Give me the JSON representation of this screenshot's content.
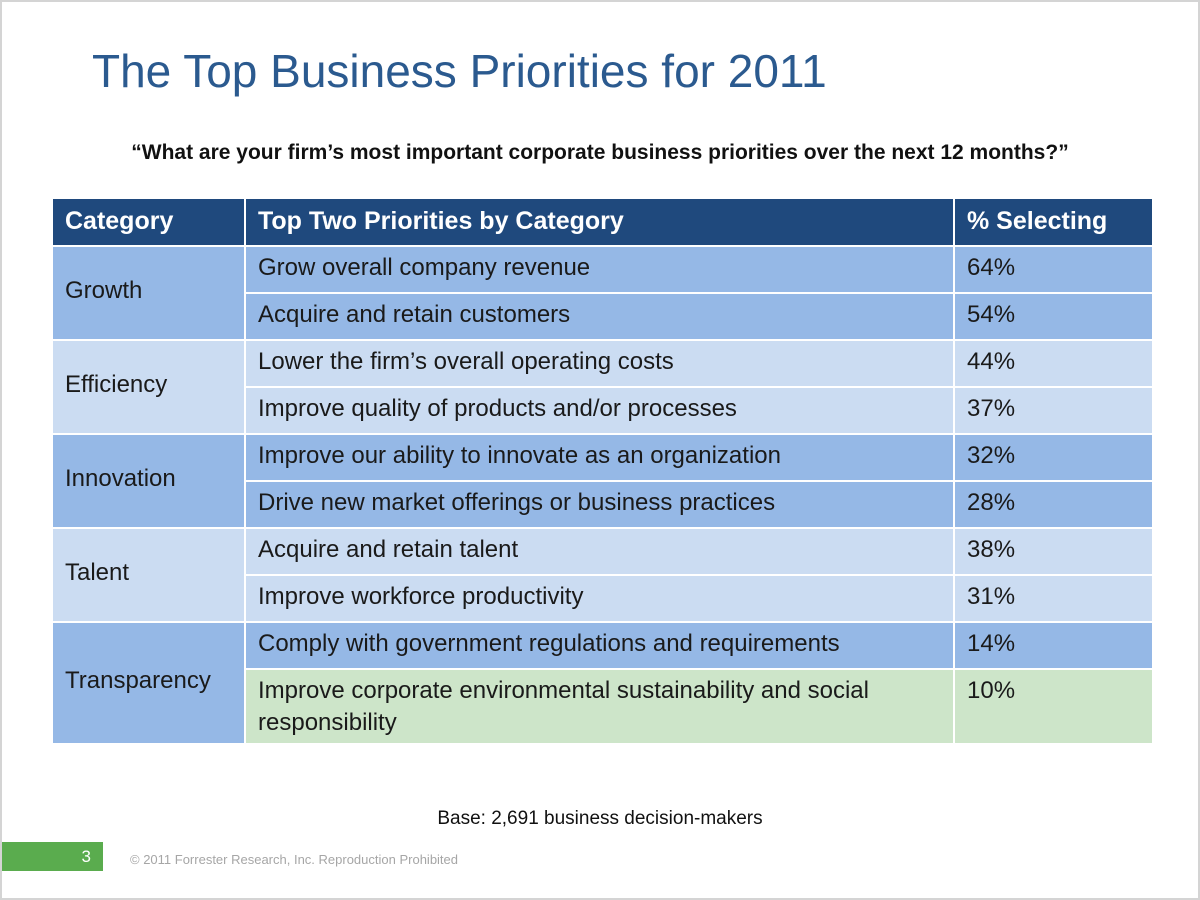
{
  "title": "The Top Business Priorities for 2011",
  "question": "“What are your firm’s most important corporate business priorities over the next 12 months?”",
  "table": {
    "headers": [
      "Category",
      "Top Two Priorities by Category",
      "% Selecting"
    ],
    "groups": [
      {
        "category": "Growth",
        "rows": [
          {
            "priority": "Grow overall company revenue",
            "percent": "64%"
          },
          {
            "priority": "Acquire and retain customers",
            "percent": "54%"
          }
        ]
      },
      {
        "category": "Efficiency",
        "rows": [
          {
            "priority": "Lower the firm’s overall operating costs",
            "percent": "44%"
          },
          {
            "priority": "Improve quality of products and/or processes",
            "percent": "37%"
          }
        ]
      },
      {
        "category": "Innovation",
        "rows": [
          {
            "priority": "Improve our ability to innovate as an organization",
            "percent": "32%"
          },
          {
            "priority": "Drive new market offerings or business practices",
            "percent": "28%"
          }
        ]
      },
      {
        "category": "Talent",
        "rows": [
          {
            "priority": "Acquire and retain talent",
            "percent": "38%"
          },
          {
            "priority": "Improve workforce productivity",
            "percent": "31%"
          }
        ]
      },
      {
        "category": "Transparency",
        "rows": [
          {
            "priority": "Comply with government regulations and requirements",
            "percent": "14%"
          },
          {
            "priority": "Improve corporate environmental sustainability and social responsibility",
            "percent": "10%"
          }
        ]
      }
    ]
  },
  "base_note": "Base: 2,691 business decision-makers",
  "page_number": "3",
  "copyright": "© 2011 Forrester Research, Inc. Reproduction Prohibited",
  "colors": {
    "title": "#2b5a8f",
    "header_bg": "#1f497d",
    "row_dark": "#95b8e6",
    "row_light": "#cbdcf2",
    "row_green": "#cde5c9",
    "page_box": "#5aac4e"
  }
}
